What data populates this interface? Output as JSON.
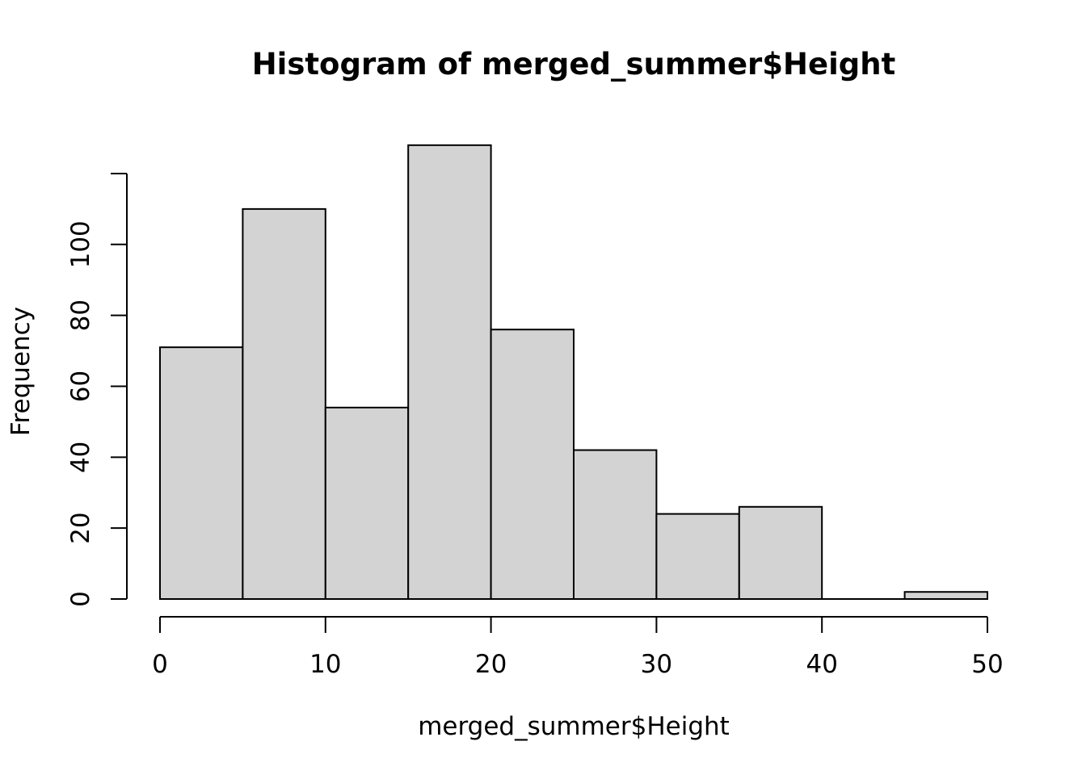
{
  "chart_data": {
    "type": "bar",
    "title": "Histogram of merged_summer$Height",
    "xlabel": "merged_summer$Height",
    "ylabel": "Frequency",
    "bin_edges": [
      0,
      5,
      10,
      15,
      20,
      25,
      30,
      35,
      40,
      45,
      50
    ],
    "values": [
      71,
      110,
      54,
      128,
      76,
      42,
      24,
      26,
      0,
      2
    ],
    "xlim": [
      0,
      50
    ],
    "ylim": [
      0,
      128
    ],
    "x_ticks": [
      0,
      10,
      20,
      30,
      40,
      50
    ],
    "x_tick_labels": [
      "0",
      "10",
      "20",
      "30",
      "40",
      "50"
    ],
    "y_ticks": [
      0,
      20,
      40,
      60,
      80,
      100,
      120
    ],
    "y_tick_labels": [
      "0",
      "20",
      "40",
      "60",
      "80",
      "100",
      ""
    ],
    "bar_fill": "#d3d3d3",
    "bar_stroke": "#000000",
    "grid": false,
    "legend": "none"
  }
}
